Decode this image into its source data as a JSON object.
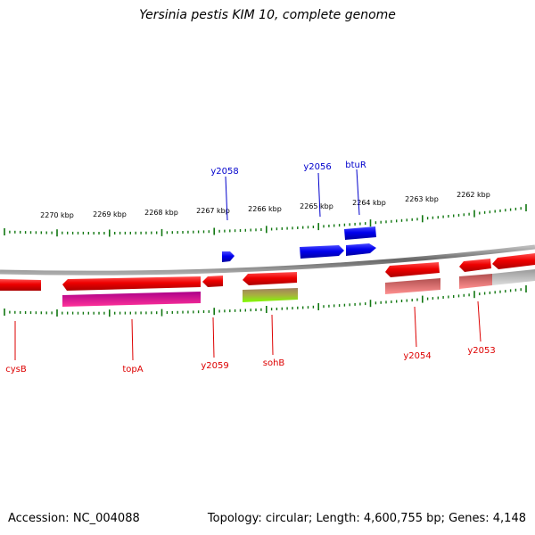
{
  "title": "Yersinia pestis KIM 10, complete genome",
  "accession_text": "Accession: NC_004088",
  "topology_text": "Topology: circular; Length: 4,600,755 bp; Genes: 4,148",
  "scale_labels": [
    "2270 kbp",
    "2269 kbp",
    "2268 kbp",
    "2267 kbp",
    "2266 kbp",
    "2265 kbp",
    "2264 kbp",
    "2263 kbp",
    "2262 kbp"
  ],
  "genes": [
    {
      "name": "y2058",
      "strand": "forward",
      "color": "#0000cc"
    },
    {
      "name": "y2056",
      "strand": "forward",
      "color": "#0000cc"
    },
    {
      "name": "btuR",
      "strand": "forward",
      "color": "#0000cc"
    },
    {
      "name": "cysB",
      "strand": "reverse",
      "color": "#dd0000"
    },
    {
      "name": "topA",
      "strand": "reverse",
      "color": "#dd0000"
    },
    {
      "name": "y2059",
      "strand": "reverse",
      "color": "#dd0000"
    },
    {
      "name": "sohB",
      "strand": "reverse",
      "color": "#dd0000"
    },
    {
      "name": "y2054",
      "strand": "reverse",
      "color": "#dd0000"
    },
    {
      "name": "y2053",
      "strand": "reverse",
      "color": "#dd0000"
    }
  ],
  "colors": {
    "forward_gene": "#0000ee",
    "reverse_gene": "#ee0000",
    "backbone": "#888888",
    "ticks": "#117711",
    "forward_label": "#0000cc",
    "reverse_label": "#dd0000"
  }
}
